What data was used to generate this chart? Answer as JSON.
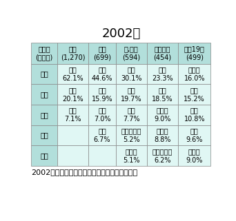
{
  "title": "2002年",
  "footer": "2002年即時型食物アレルギー全国疫学調査から",
  "col_headers": [
    "年齢群\n(症例数)",
    "０歳\n(1,270)",
    "１歳\n(699)",
    "２,３歳\n(594)",
    "４～６歳\n(454)",
    "７～19歳\n(499)"
  ],
  "row_headers": [
    "１位",
    "２位",
    "３位",
    "４位",
    "５位"
  ],
  "cell_data": [
    [
      "鶏卵\n62.1%",
      "鶏卵\n44.6%",
      "鶏卵\n30.1%",
      "鶏卵\n23.3%",
      "甲殻類\n16.0%"
    ],
    [
      "牛乳\n20.1%",
      "牛乳\n15.9%",
      "牛乳\n19.7%",
      "牛乳\n18.5%",
      "鶏卵\n15.2%"
    ],
    [
      "小麦\n7.1%",
      "小麦\n7.0%",
      "小麦\n7.7%",
      "甲殻類\n9.0%",
      "ソバ\n10.8%"
    ],
    [
      "",
      "魚卵\n6.7%",
      "ピーナッツ\n5.2%",
      "果物類\n8.8%",
      "小麦\n9.6%"
    ],
    [
      "",
      "",
      "甲殻類\n5.1%",
      "ピーナッツ\n6.2%",
      "果物類\n9.0%"
    ]
  ],
  "header_bg": "#b2dfdb",
  "cell_bg": "#e0f7f4",
  "row_header_bg": "#b2dfdb",
  "border_color": "#888888",
  "text_color": "#000000",
  "title_fontsize": 13,
  "header_fontsize": 7,
  "cell_fontsize": 7,
  "footer_fontsize": 8
}
